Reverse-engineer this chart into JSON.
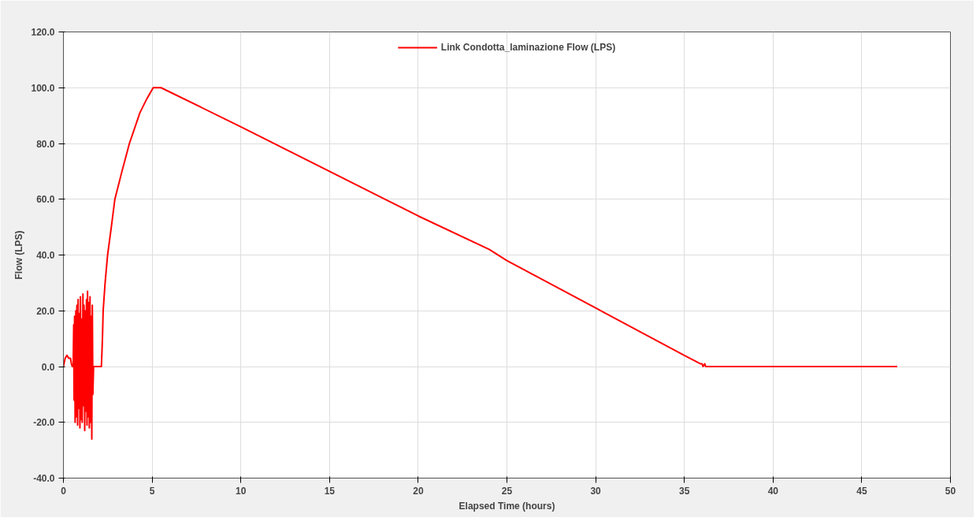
{
  "chart_data": {
    "type": "line",
    "xlabel": "Elapsed Time (hours)",
    "ylabel": "Flow (LPS)",
    "xlim": [
      0,
      50
    ],
    "ylim": [
      -40,
      120
    ],
    "xticks": [
      0,
      5,
      10,
      15,
      20,
      25,
      30,
      35,
      40,
      45,
      50
    ],
    "yticks": [
      {
        "value": -40,
        "label": "-40.0"
      },
      {
        "value": -20,
        "label": "-20.0"
      },
      {
        "value": 0,
        "label": "0.0"
      },
      {
        "value": 20,
        "label": "20.0"
      },
      {
        "value": 40,
        "label": "40.0"
      },
      {
        "value": 60,
        "label": "60.0"
      },
      {
        "value": 80,
        "label": "80.0"
      },
      {
        "value": 100,
        "label": "100.0"
      },
      {
        "value": 120,
        "label": "120.0"
      }
    ],
    "grid": true,
    "legend": "top",
    "line_style": "solid",
    "marker": "none",
    "series": [
      {
        "name": "Link Condotta_laminazione Flow (LPS)",
        "color": "#ff0000",
        "x": [
          0,
          0.1,
          0.2,
          0.3,
          0.4,
          0.45,
          0.5,
          0.55,
          0.58,
          0.6,
          0.63,
          0.66,
          0.7,
          0.73,
          0.76,
          0.8,
          0.83,
          0.86,
          0.9,
          0.93,
          0.96,
          1.0,
          1.03,
          1.06,
          1.1,
          1.13,
          1.16,
          1.2,
          1.23,
          1.26,
          1.3,
          1.33,
          1.36,
          1.4,
          1.43,
          1.46,
          1.5,
          1.53,
          1.56,
          1.6,
          1.63,
          1.66,
          1.7,
          1.9,
          2.14,
          2.2,
          2.24,
          2.35,
          2.49,
          2.7,
          2.9,
          3.3,
          3.72,
          4.31,
          4.7,
          5.06,
          5.5,
          10,
          15,
          20,
          24,
          25,
          30,
          35,
          35.9,
          36.0,
          36.05,
          36.15,
          36.2,
          36.3,
          47
        ],
        "values": [
          0,
          3,
          4,
          3,
          3,
          1,
          0,
          0,
          15,
          -12,
          18,
          -20,
          20,
          -18,
          22,
          -21,
          24,
          -15,
          19,
          -22,
          25,
          -19,
          17,
          -20,
          26,
          -14,
          22,
          -23,
          20,
          -16,
          24,
          -21,
          27,
          -18,
          23,
          -22,
          25,
          -20,
          18,
          -26,
          22,
          -10,
          0,
          0,
          0,
          10,
          20,
          30,
          40,
          50,
          60,
          70,
          80,
          91,
          96,
          100,
          100,
          86,
          70,
          54,
          42,
          38,
          21,
          4,
          1,
          1,
          0,
          1,
          0,
          0,
          0
        ]
      }
    ]
  }
}
